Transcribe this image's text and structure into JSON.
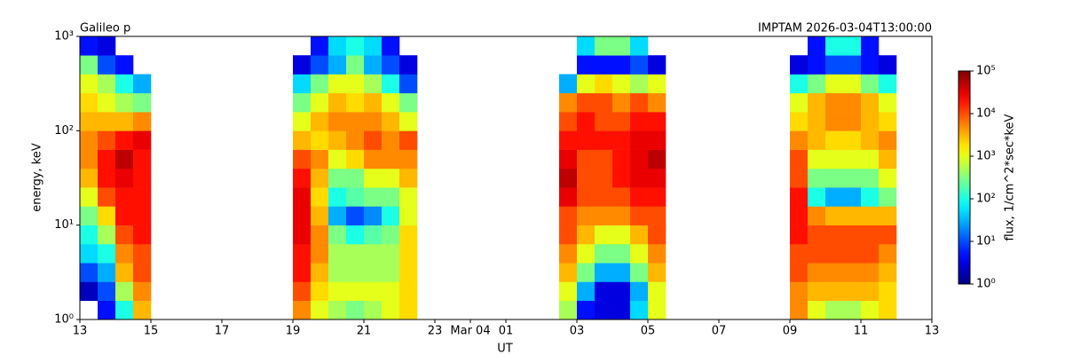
{
  "chart_data": {
    "type": "heatmap",
    "title_left": "Galileo p",
    "title_right": "IMPTAM 2026-03-04T13:00:00",
    "xlabel": "UT",
    "ylabel": "energy, keV",
    "colorbar_label": "flux, 1/cm^2*sec*keV",
    "colormap": "jet",
    "log_y": true,
    "log_z": true,
    "x": [
      13,
      13.5,
      14,
      14.5,
      15,
      15.5,
      16,
      16.5,
      17,
      17.5,
      18,
      18.5,
      19,
      19.5,
      20,
      20.5,
      21,
      21.5,
      22,
      22.5,
      23,
      23.5,
      24,
      24.5,
      25,
      25.5,
      26,
      26.5,
      27,
      27.5,
      28,
      28.5,
      29,
      29.5,
      30,
      30.5,
      31,
      31.5,
      32,
      32.5,
      33,
      33.5,
      34,
      34.5,
      35,
      35.5,
      36,
      36.5,
      37
    ],
    "y": [
      1,
      1.585,
      2.512,
      3.981,
      6.31,
      10,
      15.85,
      25.12,
      39.81,
      63.1,
      100,
      158.5,
      251.2,
      398.1,
      631,
      1000
    ],
    "xlim": [
      13,
      37
    ],
    "xticks": [
      13,
      15,
      17,
      19,
      21,
      23,
      {
        "value": 24,
        "label": "Mar 04"
      },
      {
        "value": 25,
        "label": "01"
      },
      {
        "value": 27,
        "label": "03"
      },
      {
        "value": 29,
        "label": "05"
      },
      {
        "value": 31,
        "label": "07"
      },
      {
        "value": 33,
        "label": "09"
      },
      {
        "value": 35,
        "label": "11"
      },
      {
        "value": 37,
        "label": "13"
      }
    ],
    "ylim": [
      1,
      1000
    ],
    "yticks": [
      {
        "value": 1,
        "label": "10⁰"
      },
      {
        "value": 10,
        "label": "10¹"
      },
      {
        "value": 100,
        "label": "10²"
      },
      {
        "value": 1000,
        "label": "10³"
      }
    ],
    "zlim": [
      1,
      100000
    ],
    "zticks": [
      {
        "value": 1,
        "label": "10⁰"
      },
      {
        "value": 10,
        "label": "10¹"
      },
      {
        "value": 100,
        "label": "10²"
      },
      {
        "value": 1000,
        "label": "10³"
      },
      {
        "value": 10000,
        "label": "10⁴"
      },
      {
        "value": 100000,
        "label": "10⁵"
      }
    ],
    "z": [
      [
        null,
        5,
        100,
        3000,
        null,
        null,
        null,
        null,
        null,
        null,
        null,
        null,
        5000,
        1000,
        500,
        300,
        500,
        1000,
        2000,
        null,
        null,
        null,
        null,
        null,
        null,
        null,
        null,
        500,
        5,
        3,
        3,
        50,
        1000,
        null,
        null,
        null,
        null,
        null,
        null,
        null,
        5000,
        1000,
        500,
        500,
        1000,
        2000,
        null,
        null
      ],
      [
        2,
        10,
        500,
        5000,
        null,
        null,
        null,
        null,
        null,
        null,
        null,
        null,
        10000,
        2000,
        1000,
        1000,
        1000,
        1000,
        2000,
        null,
        null,
        null,
        null,
        null,
        null,
        null,
        null,
        1000,
        30,
        3,
        3,
        30,
        1000,
        null,
        null,
        null,
        null,
        null,
        null,
        null,
        5000,
        3000,
        3000,
        3000,
        3000,
        2000,
        null,
        null
      ],
      [
        10,
        30,
        3000,
        10000,
        null,
        null,
        null,
        null,
        null,
        null,
        null,
        null,
        20000,
        3000,
        500,
        500,
        500,
        500,
        2000,
        null,
        null,
        null,
        null,
        null,
        null,
        null,
        null,
        3000,
        300,
        30,
        30,
        300,
        3000,
        null,
        null,
        null,
        null,
        null,
        null,
        null,
        10000,
        5000,
        5000,
        5000,
        5000,
        3000,
        null,
        null
      ],
      [
        50,
        100,
        5000,
        10000,
        null,
        null,
        null,
        null,
        null,
        null,
        null,
        null,
        20000,
        5000,
        500,
        500,
        500,
        500,
        2000,
        null,
        null,
        null,
        null,
        null,
        null,
        null,
        null,
        5000,
        1000,
        300,
        300,
        1000,
        5000,
        null,
        null,
        null,
        null,
        null,
        null,
        null,
        10000,
        10000,
        10000,
        10000,
        10000,
        5000,
        null,
        null
      ],
      [
        100,
        500,
        10000,
        20000,
        null,
        null,
        null,
        null,
        null,
        null,
        null,
        null,
        30000,
        5000,
        300,
        100,
        200,
        300,
        2000,
        null,
        null,
        null,
        null,
        null,
        null,
        null,
        null,
        10000,
        3000,
        1000,
        1000,
        3000,
        10000,
        null,
        null,
        null,
        null,
        null,
        null,
        null,
        20000,
        10000,
        10000,
        10000,
        10000,
        10000,
        null,
        null
      ],
      [
        300,
        2000,
        20000,
        20000,
        null,
        null,
        null,
        null,
        null,
        null,
        null,
        null,
        30000,
        3000,
        30,
        10,
        20,
        100,
        1000,
        null,
        null,
        null,
        null,
        null,
        null,
        null,
        null,
        10000,
        5000,
        5000,
        5000,
        10000,
        10000,
        null,
        null,
        null,
        null,
        null,
        null,
        null,
        20000,
        5000,
        3000,
        3000,
        3000,
        3000,
        null,
        null
      ],
      [
        1000,
        10000,
        20000,
        20000,
        null,
        null,
        null,
        null,
        null,
        null,
        null,
        null,
        30000,
        2000,
        100,
        200,
        300,
        300,
        1000,
        null,
        null,
        null,
        null,
        null,
        null,
        null,
        null,
        30000,
        10000,
        10000,
        10000,
        20000,
        20000,
        null,
        null,
        null,
        null,
        null,
        null,
        null,
        20000,
        100,
        30,
        30,
        100,
        300,
        null,
        null
      ],
      [
        3000,
        20000,
        30000,
        20000,
        null,
        null,
        null,
        null,
        null,
        null,
        null,
        null,
        20000,
        3000,
        300,
        300,
        1000,
        1000,
        3000,
        null,
        null,
        null,
        null,
        null,
        null,
        null,
        null,
        50000,
        10000,
        10000,
        20000,
        30000,
        30000,
        null,
        null,
        null,
        null,
        null,
        null,
        null,
        10000,
        300,
        300,
        300,
        300,
        1000,
        null,
        null
      ],
      [
        5000,
        20000,
        50000,
        20000,
        null,
        null,
        null,
        null,
        null,
        null,
        null,
        null,
        10000,
        5000,
        1000,
        2000,
        5000,
        5000,
        5000,
        null,
        null,
        null,
        null,
        null,
        null,
        null,
        null,
        30000,
        10000,
        10000,
        20000,
        30000,
        50000,
        null,
        null,
        null,
        null,
        null,
        null,
        null,
        10000,
        1000,
        1000,
        1000,
        1000,
        3000,
        null,
        null
      ],
      [
        5000,
        10000,
        20000,
        30000,
        null,
        null,
        null,
        null,
        null,
        null,
        null,
        null,
        3000,
        2000,
        3000,
        5000,
        10000,
        5000,
        10000,
        null,
        null,
        null,
        null,
        null,
        null,
        null,
        null,
        20000,
        20000,
        20000,
        20000,
        30000,
        30000,
        null,
        null,
        null,
        null,
        null,
        null,
        null,
        5000,
        3000,
        2000,
        2000,
        3000,
        5000,
        null,
        null
      ],
      [
        3000,
        3000,
        3000,
        5000,
        null,
        null,
        null,
        null,
        null,
        null,
        null,
        null,
        1000,
        3000,
        5000,
        5000,
        5000,
        3000,
        1000,
        null,
        null,
        null,
        null,
        null,
        null,
        null,
        null,
        10000,
        20000,
        10000,
        10000,
        20000,
        20000,
        null,
        null,
        null,
        null,
        null,
        null,
        null,
        2000,
        3000,
        5000,
        5000,
        3000,
        2000,
        null,
        null
      ],
      [
        2000,
        1000,
        500,
        300,
        null,
        null,
        null,
        null,
        null,
        null,
        null,
        null,
        300,
        1000,
        3000,
        2000,
        3000,
        1000,
        300,
        null,
        null,
        null,
        null,
        null,
        null,
        null,
        null,
        5000,
        10000,
        10000,
        5000,
        10000,
        5000,
        null,
        null,
        null,
        null,
        null,
        null,
        null,
        1000,
        3000,
        5000,
        5000,
        3000,
        1000,
        null,
        null
      ],
      [
        1000,
        500,
        100,
        30,
        null,
        null,
        null,
        null,
        null,
        null,
        null,
        null,
        50,
        300,
        1000,
        1000,
        500,
        100,
        10,
        null,
        null,
        null,
        null,
        null,
        null,
        null,
        null,
        30,
        1000,
        2000,
        1000,
        500,
        1000,
        null,
        null,
        null,
        null,
        null,
        null,
        null,
        100,
        300,
        1000,
        1000,
        300,
        100,
        null,
        null
      ],
      [
        300,
        10,
        5,
        null,
        null,
        null,
        null,
        null,
        null,
        null,
        null,
        null,
        3,
        10,
        30,
        300,
        30,
        10,
        3,
        null,
        null,
        null,
        null,
        null,
        null,
        null,
        null,
        null,
        5,
        5,
        5,
        10,
        3,
        null,
        null,
        null,
        null,
        null,
        null,
        null,
        3,
        5,
        10,
        10,
        5,
        3,
        null,
        null
      ],
      [
        5,
        3,
        null,
        null,
        null,
        null,
        null,
        null,
        null,
        null,
        null,
        null,
        null,
        5,
        50,
        100,
        50,
        5,
        null,
        null,
        null,
        null,
        null,
        null,
        null,
        null,
        null,
        null,
        50,
        300,
        300,
        50,
        null,
        null,
        null,
        null,
        null,
        null,
        null,
        null,
        null,
        5,
        100,
        100,
        5,
        null,
        null,
        null
      ]
    ]
  }
}
